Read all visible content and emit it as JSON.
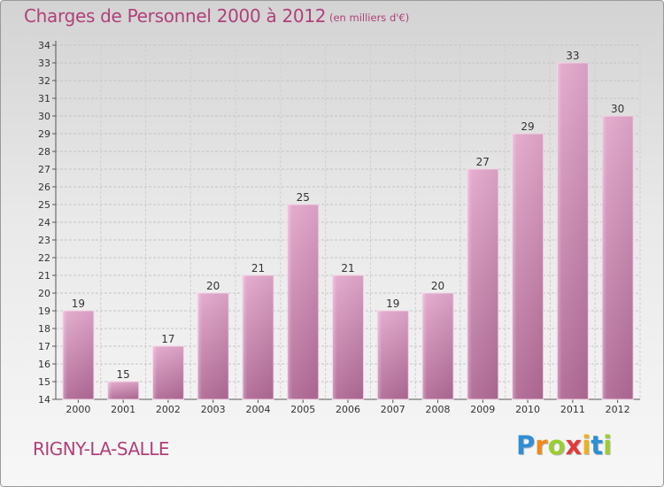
{
  "chart_data": {
    "type": "bar",
    "title": "Charges de Personnel 2000 à 2012",
    "subtitle": "(en milliers d'€)",
    "categories": [
      "2000",
      "2001",
      "2002",
      "2003",
      "2004",
      "2005",
      "2006",
      "2007",
      "2008",
      "2009",
      "2010",
      "2011",
      "2012"
    ],
    "values": [
      19,
      15,
      17,
      20,
      21,
      25,
      21,
      19,
      20,
      27,
      29,
      33,
      30
    ],
    "ylim": [
      14,
      34
    ],
    "yticks": [
      14,
      15,
      16,
      17,
      18,
      19,
      20,
      21,
      22,
      23,
      24,
      25,
      26,
      27,
      28,
      29,
      30,
      31,
      32,
      33,
      34
    ],
    "grid": true,
    "bar_color": "#d889b7",
    "title_color": "#b0407a"
  },
  "footer": {
    "commune": "RIGNY-LA-SALLE",
    "logo_letters": [
      {
        "char": "P",
        "color": "#2e8fd6"
      },
      {
        "char": "r",
        "color": "#f08a1c"
      },
      {
        "char": "o",
        "color": "#9acd32"
      },
      {
        "char": "x",
        "color": "#e03b3b"
      },
      {
        "char": "i",
        "color": "#f0b01c"
      },
      {
        "char": "t",
        "color": "#2e8fd6"
      },
      {
        "char": "i",
        "color": "#9acd32"
      }
    ]
  }
}
